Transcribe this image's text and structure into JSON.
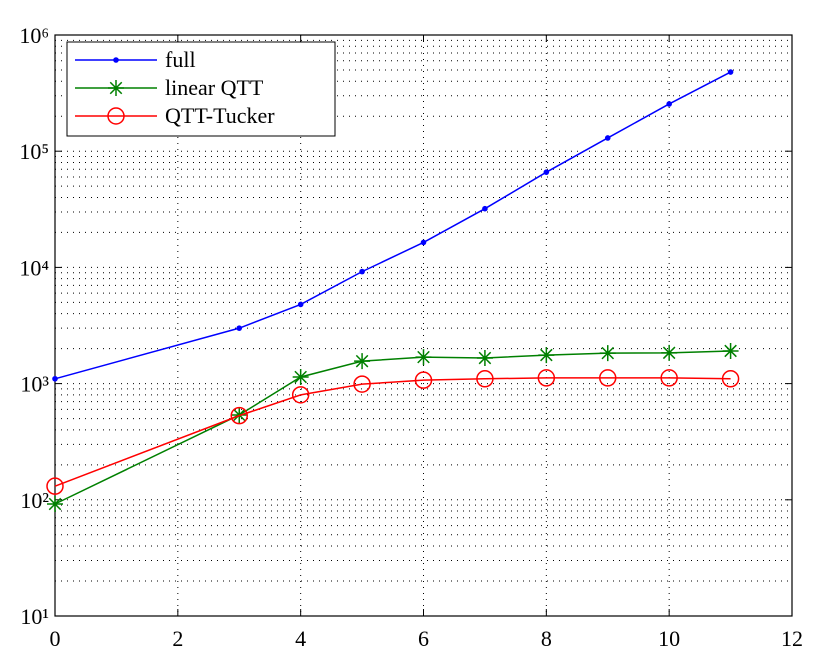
{
  "chart_data": {
    "type": "line",
    "x": [
      0,
      3,
      4,
      5,
      6,
      7,
      8,
      9,
      10,
      11
    ],
    "series": [
      {
        "name": "full",
        "color": "#0000ff",
        "marker": "dot",
        "values": [
          1100,
          3000,
          4800,
          9200,
          16400,
          32000,
          66000,
          130000,
          255000,
          480000
        ]
      },
      {
        "name": "linear QTT",
        "color": "#008000",
        "marker": "star",
        "values": [
          92,
          537,
          1140,
          1560,
          1690,
          1660,
          1760,
          1830,
          1840,
          1910
        ]
      },
      {
        "name": "QTT-Tucker",
        "color": "#ff0000",
        "marker": "circle",
        "values": [
          131,
          530,
          800,
          990,
          1070,
          1100,
          1120,
          1120,
          1120,
          1100
        ]
      }
    ],
    "xlim": [
      0,
      12
    ],
    "xticks": [
      0,
      2,
      4,
      6,
      8,
      10,
      12
    ],
    "ylim": [
      10,
      1000000
    ],
    "yticks": [
      {
        "value": 10,
        "label": "10¹"
      },
      {
        "value": 100,
        "label": "10²"
      },
      {
        "value": 1000,
        "label": "10³"
      },
      {
        "value": 10000,
        "label": "10⁴"
      },
      {
        "value": 100000,
        "label": "10⁵"
      },
      {
        "value": 1000000,
        "label": "10⁶"
      }
    ],
    "ylog": true,
    "grid": true,
    "minor_grid": true,
    "legend": "upper-left"
  }
}
